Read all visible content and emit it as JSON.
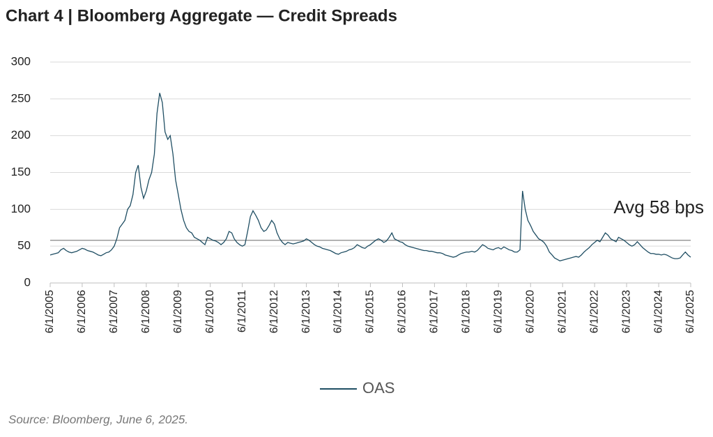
{
  "chart_data": {
    "type": "line",
    "title": "Chart 4 | Bloomberg Aggregate — Credit Spreads",
    "source": "Source: Bloomberg, June 6, 2025.",
    "x": [
      "6/1/2005",
      "7/1/2005",
      "8/1/2005",
      "9/1/2005",
      "10/1/2005",
      "11/1/2005",
      "12/1/2005",
      "1/1/2006",
      "2/1/2006",
      "3/1/2006",
      "4/1/2006",
      "5/1/2006",
      "6/1/2006",
      "7/1/2006",
      "8/1/2006",
      "9/1/2006",
      "10/1/2006",
      "11/1/2006",
      "12/1/2006",
      "1/1/2007",
      "2/1/2007",
      "3/1/2007",
      "4/1/2007",
      "5/1/2007",
      "6/1/2007",
      "7/1/2007",
      "8/1/2007",
      "9/1/2007",
      "10/1/2007",
      "11/1/2007",
      "12/1/2007",
      "1/1/2008",
      "2/1/2008",
      "3/1/2008",
      "4/1/2008",
      "5/1/2008",
      "6/1/2008",
      "7/1/2008",
      "8/1/2008",
      "9/1/2008",
      "10/1/2008",
      "11/1/2008",
      "12/1/2008",
      "1/1/2009",
      "2/1/2009",
      "3/1/2009",
      "4/1/2009",
      "5/1/2009",
      "6/1/2009",
      "7/1/2009",
      "8/1/2009",
      "9/1/2009",
      "10/1/2009",
      "11/1/2009",
      "12/1/2009",
      "1/1/2010",
      "2/1/2010",
      "3/1/2010",
      "4/1/2010",
      "5/1/2010",
      "6/1/2010",
      "7/1/2010",
      "8/1/2010",
      "9/1/2010",
      "10/1/2010",
      "11/1/2010",
      "12/1/2010",
      "1/1/2011",
      "2/1/2011",
      "3/1/2011",
      "4/1/2011",
      "5/1/2011",
      "6/1/2011",
      "7/1/2011",
      "8/1/2011",
      "9/1/2011",
      "10/1/2011",
      "11/1/2011",
      "12/1/2011",
      "1/1/2012",
      "2/1/2012",
      "3/1/2012",
      "4/1/2012",
      "5/1/2012",
      "6/1/2012",
      "7/1/2012",
      "8/1/2012",
      "9/1/2012",
      "10/1/2012",
      "11/1/2012",
      "12/1/2012",
      "1/1/2013",
      "2/1/2013",
      "3/1/2013",
      "4/1/2013",
      "5/1/2013",
      "6/1/2013",
      "7/1/2013",
      "8/1/2013",
      "9/1/2013",
      "10/1/2013",
      "11/1/2013",
      "12/1/2013",
      "1/1/2014",
      "2/1/2014",
      "3/1/2014",
      "4/1/2014",
      "5/1/2014",
      "6/1/2014",
      "7/1/2014",
      "8/1/2014",
      "9/1/2014",
      "10/1/2014",
      "11/1/2014",
      "12/1/2014",
      "1/1/2015",
      "2/1/2015",
      "3/1/2015",
      "4/1/2015",
      "5/1/2015",
      "6/1/2015",
      "7/1/2015",
      "8/1/2015",
      "9/1/2015",
      "10/1/2015",
      "11/1/2015",
      "12/1/2015",
      "1/1/2016",
      "2/1/2016",
      "3/1/2016",
      "4/1/2016",
      "5/1/2016",
      "6/1/2016",
      "7/1/2016",
      "8/1/2016",
      "9/1/2016",
      "10/1/2016",
      "11/1/2016",
      "12/1/2016",
      "1/1/2017",
      "2/1/2017",
      "3/1/2017",
      "4/1/2017",
      "5/1/2017",
      "6/1/2017",
      "7/1/2017",
      "8/1/2017",
      "9/1/2017",
      "10/1/2017",
      "11/1/2017",
      "12/1/2017",
      "1/1/2018",
      "2/1/2018",
      "3/1/2018",
      "4/1/2018",
      "5/1/2018",
      "6/1/2018",
      "7/1/2018",
      "8/1/2018",
      "9/1/2018",
      "10/1/2018",
      "11/1/2018",
      "12/1/2018",
      "1/1/2019",
      "2/1/2019",
      "3/1/2019",
      "4/1/2019",
      "5/1/2019",
      "6/1/2019",
      "7/1/2019",
      "8/1/2019",
      "9/1/2019",
      "10/1/2019",
      "11/1/2019",
      "12/1/2019",
      "1/1/2020",
      "2/1/2020",
      "3/1/2020",
      "4/1/2020",
      "5/1/2020",
      "6/1/2020",
      "7/1/2020",
      "8/1/2020",
      "9/1/2020",
      "10/1/2020",
      "11/1/2020",
      "12/1/2020",
      "1/1/2021",
      "2/1/2021",
      "3/1/2021",
      "4/1/2021",
      "5/1/2021",
      "6/1/2021",
      "7/1/2021",
      "8/1/2021",
      "9/1/2021",
      "10/1/2021",
      "11/1/2021",
      "12/1/2021",
      "1/1/2022",
      "2/1/2022",
      "3/1/2022",
      "4/1/2022",
      "5/1/2022",
      "6/1/2022",
      "7/1/2022",
      "8/1/2022",
      "9/1/2022",
      "10/1/2022",
      "11/1/2022",
      "12/1/2022",
      "1/1/2023",
      "2/1/2023",
      "3/1/2023",
      "4/1/2023",
      "5/1/2023",
      "6/1/2023",
      "7/1/2023",
      "8/1/2023",
      "9/1/2023",
      "10/1/2023",
      "11/1/2023",
      "12/1/2023",
      "1/1/2024",
      "2/1/2024",
      "3/1/2024",
      "4/1/2024",
      "5/1/2024",
      "6/1/2024",
      "7/1/2024",
      "8/1/2024",
      "9/1/2024",
      "10/1/2024",
      "11/1/2024",
      "12/1/2024",
      "1/1/2025",
      "2/1/2025",
      "3/1/2025",
      "4/1/2025",
      "5/1/2025",
      "6/1/2025"
    ],
    "series": [
      {
        "name": "OAS",
        "color": "#1f4e63",
        "values": [
          38,
          39,
          40,
          41,
          45,
          47,
          44,
          42,
          41,
          42,
          43,
          45,
          47,
          46,
          44,
          43,
          42,
          40,
          38,
          37,
          39,
          41,
          42,
          45,
          50,
          60,
          75,
          80,
          85,
          100,
          105,
          120,
          150,
          160,
          130,
          115,
          125,
          140,
          150,
          175,
          230,
          258,
          245,
          205,
          195,
          200,
          175,
          140,
          120,
          100,
          85,
          75,
          70,
          68,
          62,
          60,
          58,
          55,
          52,
          62,
          60,
          58,
          57,
          55,
          52,
          55,
          60,
          70,
          68,
          60,
          55,
          52,
          50,
          52,
          70,
          90,
          98,
          92,
          85,
          75,
          70,
          72,
          78,
          85,
          80,
          68,
          60,
          55,
          52,
          55,
          54,
          53,
          54,
          55,
          56,
          57,
          60,
          58,
          55,
          52,
          50,
          49,
          47,
          46,
          45,
          44,
          42,
          40,
          39,
          41,
          42,
          43,
          45,
          46,
          48,
          52,
          50,
          48,
          47,
          50,
          52,
          55,
          58,
          60,
          58,
          55,
          57,
          62,
          68,
          60,
          58,
          56,
          55,
          52,
          50,
          49,
          48,
          47,
          46,
          45,
          44,
          44,
          43,
          43,
          42,
          41,
          41,
          40,
          38,
          37,
          36,
          35,
          36,
          38,
          40,
          41,
          42,
          42,
          43,
          42,
          44,
          48,
          52,
          50,
          47,
          46,
          45,
          47,
          48,
          46,
          49,
          47,
          45,
          44,
          42,
          42,
          45,
          125,
          100,
          85,
          78,
          70,
          65,
          60,
          58,
          55,
          50,
          42,
          38,
          34,
          32,
          30,
          31,
          32,
          33,
          34,
          35,
          36,
          35,
          38,
          42,
          45,
          48,
          52,
          55,
          58,
          56,
          62,
          68,
          65,
          60,
          58,
          56,
          62,
          60,
          58,
          55,
          52,
          50,
          52,
          56,
          52,
          48,
          45,
          42,
          40,
          40,
          39,
          39,
          38,
          39,
          38,
          36,
          34,
          33,
          33,
          34,
          38,
          42,
          38,
          35
        ]
      }
    ],
    "xticks": [
      "6/1/2005",
      "6/1/2006",
      "6/1/2007",
      "6/1/2008",
      "6/1/2009",
      "6/1/2010",
      "6/1/2011",
      "6/1/2012",
      "6/1/2013",
      "6/1/2014",
      "6/1/2015",
      "6/1/2016",
      "6/1/2017",
      "6/1/2018",
      "6/1/2019",
      "6/1/2020",
      "6/1/2021",
      "6/1/2022",
      "6/1/2023",
      "6/1/2024",
      "6/1/2025"
    ],
    "ylim": [
      0,
      300
    ],
    "yticks": [
      0,
      50,
      100,
      150,
      200,
      250,
      300
    ],
    "grid": true,
    "avg_line": {
      "value": 58,
      "label": "Avg 58 bps",
      "color": "#999999"
    },
    "legend": "bottom"
  }
}
